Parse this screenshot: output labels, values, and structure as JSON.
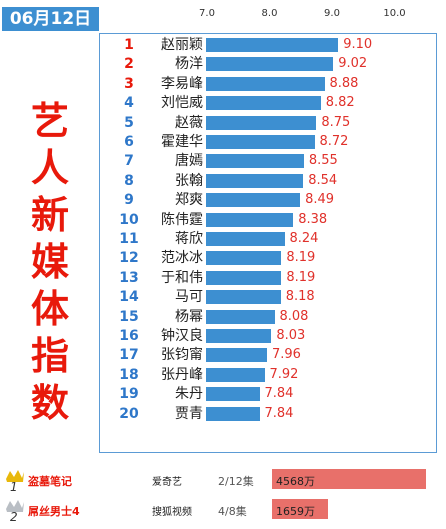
{
  "header": {
    "date": "06月12日"
  },
  "side_title": [
    "艺",
    "人",
    "新",
    "媒",
    "体",
    "指",
    "数"
  ],
  "colors": {
    "bar": "#3d8fd1",
    "accent_red": "#e8190b",
    "rank_blue": "#2e77c9",
    "value_red": "#e0312b",
    "views_box": "#e8706a"
  },
  "chart_data": {
    "type": "bar",
    "orientation": "horizontal",
    "x_ticks": [
      "7.0",
      "8.0",
      "9.0",
      "10.0"
    ],
    "xlim": [
      6.0,
      10.0
    ],
    "grid": false,
    "rows": [
      {
        "rank": "1",
        "name": "赵丽颖",
        "value": 9.1,
        "label": "9.10"
      },
      {
        "rank": "2",
        "name": "杨洋",
        "value": 9.02,
        "label": "9.02"
      },
      {
        "rank": "3",
        "name": "李易峰",
        "value": 8.88,
        "label": "8.88"
      },
      {
        "rank": "4",
        "name": "刘恺威",
        "value": 8.82,
        "label": "8.82"
      },
      {
        "rank": "5",
        "name": "赵薇",
        "value": 8.75,
        "label": "8.75"
      },
      {
        "rank": "6",
        "name": "霍建华",
        "value": 8.72,
        "label": "8.72"
      },
      {
        "rank": "7",
        "name": "唐嫣",
        "value": 8.55,
        "label": "8.55"
      },
      {
        "rank": "8",
        "name": "张翰",
        "value": 8.54,
        "label": "8.54"
      },
      {
        "rank": "9",
        "name": "郑爽",
        "value": 8.49,
        "label": "8.49"
      },
      {
        "rank": "10",
        "name": "陈伟霆",
        "value": 8.38,
        "label": "8.38"
      },
      {
        "rank": "11",
        "name": "蒋欣",
        "value": 8.24,
        "label": "8.24"
      },
      {
        "rank": "12",
        "name": "范冰冰",
        "value": 8.19,
        "label": "8.19"
      },
      {
        "rank": "13",
        "name": "于和伟",
        "value": 8.19,
        "label": "8.19"
      },
      {
        "rank": "14",
        "name": "马可",
        "value": 8.18,
        "label": "8.18"
      },
      {
        "rank": "15",
        "name": "杨幂",
        "value": 8.08,
        "label": "8.08"
      },
      {
        "rank": "16",
        "name": "钟汉良",
        "value": 8.03,
        "label": "8.03"
      },
      {
        "rank": "17",
        "name": "张钧甯",
        "value": 7.96,
        "label": "7.96"
      },
      {
        "rank": "18",
        "name": "张丹峰",
        "value": 7.92,
        "label": "7.92"
      },
      {
        "rank": "19",
        "name": "朱丹",
        "value": 7.84,
        "label": "7.84"
      },
      {
        "rank": "20",
        "name": "贾青",
        "value": 7.84,
        "label": "7.84"
      }
    ]
  },
  "shows": [
    {
      "rank": "1",
      "title": "盗墓笔记",
      "platform": "爱奇艺",
      "episodes": "2/12集",
      "views": "4568万",
      "views_value": 4568
    },
    {
      "rank": "2",
      "title": "屌丝男士4",
      "platform": "搜狐视频",
      "episodes": "4/8集",
      "views": "1659万",
      "views_value": 1659
    }
  ]
}
